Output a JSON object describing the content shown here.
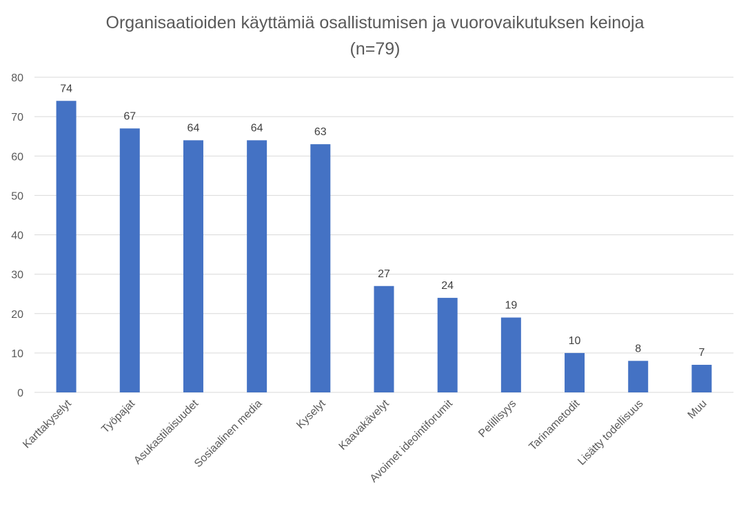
{
  "chart_data": {
    "type": "bar",
    "title": "Organisaatioiden käyttämiä osallistumisen ja vuorovaikutuksen keinoja",
    "subtitle": "(n=79)",
    "xlabel": "",
    "ylabel": "",
    "categories": [
      "Karttakyselyt",
      "Työpajat",
      "Asukastilaisuudet",
      "Sosiaalinen media",
      "Kyselyt",
      "Kaavakävelyt",
      "Avoimet ideointiforumit",
      "Pelillisyys",
      "Tarinametodit",
      "Lisätty todellisuus",
      "Muu"
    ],
    "values": [
      74,
      67,
      64,
      64,
      63,
      27,
      24,
      19,
      10,
      8,
      7
    ],
    "ylim": [
      0,
      80
    ],
    "yticks": [
      0,
      10,
      20,
      30,
      40,
      50,
      60,
      70,
      80
    ],
    "grid": true,
    "legend": "none",
    "data_labels": true,
    "colors": {
      "bar": "#4472C4",
      "grid": "#D9D9D9",
      "axis_text": "#595959",
      "label_text": "#404040",
      "title_text": "#595959"
    }
  }
}
